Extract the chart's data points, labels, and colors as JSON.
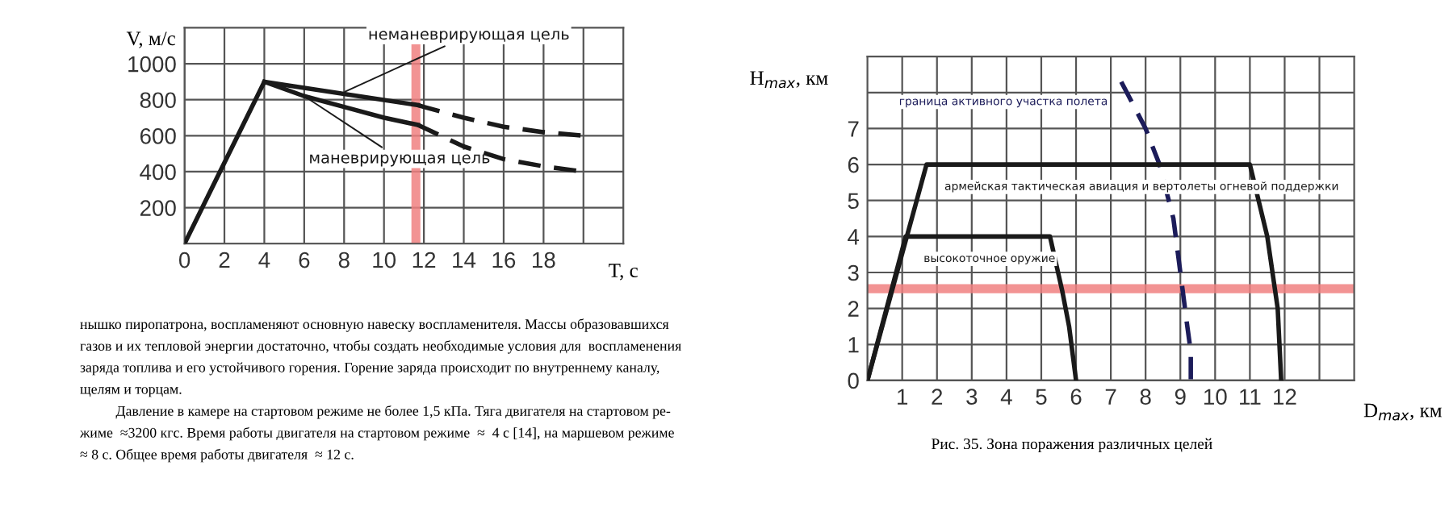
{
  "chart_data": [
    {
      "type": "line",
      "xlabel": "T, с",
      "ylabel": "V, м/с",
      "xlim": [
        0,
        22
      ],
      "ylim": [
        0,
        1200
      ],
      "xticks": [
        0,
        2,
        4,
        6,
        8,
        10,
        12,
        14,
        16,
        18,
        {
          "value": 20,
          "label": null
        }
      ],
      "yticks": [
        {
          "value": 0,
          "label": null
        },
        200,
        400,
        600,
        800,
        1000
      ],
      "grid": true,
      "marker": "none",
      "series": [
        {
          "name": "неманеврирующая цель",
          "color": "#1a1a1a",
          "line_style": "solid",
          "x": [
            0,
            4,
            11.7
          ],
          "values": [
            0,
            900,
            770
          ]
        },
        {
          "color": "#1a1a1a",
          "line_style": "dashed",
          "x": [
            11.7,
            12,
            14,
            16,
            18,
            20
          ],
          "values": [
            770,
            760,
            700,
            650,
            620,
            600
          ]
        },
        {
          "name": "маневрирующая цель",
          "color": "#1a1a1a",
          "line_style": "solid",
          "x": [
            4,
            6,
            8,
            10,
            11.7
          ],
          "values": [
            900,
            820,
            760,
            700,
            660
          ]
        },
        {
          "color": "#1a1a1a",
          "line_style": "dashed",
          "x": [
            11.7,
            14,
            16,
            18,
            20
          ],
          "values": [
            660,
            540,
            470,
            430,
            400
          ]
        }
      ],
      "ref_lines": [
        {
          "axis": "x",
          "value": 11.6,
          "color": "#f08080"
        }
      ]
    },
    {
      "type": "line",
      "xlabel": "D$_{max}$, км",
      "ylabel": "H$_{max}$, км",
      "xlim": [
        0,
        14
      ],
      "ylim": [
        0,
        9
      ],
      "xticks": [
        1,
        2,
        3,
        4,
        5,
        6,
        7,
        8,
        9,
        10,
        11,
        12,
        {
          "value": 13,
          "label": null
        }
      ],
      "yticks": [
        0,
        1,
        2,
        3,
        4,
        5,
        6,
        7,
        {
          "value": 8,
          "label": null
        }
      ],
      "grid": true,
      "marker": "none",
      "series": [
        {
          "name": "граница активного участка полета",
          "color": "#1c1c5a",
          "line_style": "dashed",
          "x": [
            7.3,
            8.0,
            8.4,
            8.8,
            9.0,
            9.2,
            9.3,
            9.3
          ],
          "values": [
            8.3,
            7.0,
            6.0,
            4.5,
            3.0,
            1.5,
            0.8,
            0
          ]
        },
        {
          "name": "армейская тактическая авиация и вертолеты огневой поддержки",
          "color": "#1a1a1a",
          "line_style": "solid",
          "x": [
            0,
            1.7,
            11.0,
            11.5,
            11.8,
            11.9
          ],
          "values": [
            0,
            6,
            6,
            4,
            2,
            0
          ]
        },
        {
          "name": "высокоточное оружие",
          "color": "#1a1a1a",
          "line_style": "solid",
          "x": [
            0,
            1.1,
            5.25,
            5.6,
            5.8,
            6.0
          ],
          "values": [
            0,
            4,
            4,
            2.5,
            1.5,
            0
          ]
        }
      ],
      "ref_lines": [
        {
          "axis": "y",
          "value": 2.55,
          "color": "#f08080"
        }
      ],
      "annotations": [
        "Рис. 35. Зона поражения различных целей"
      ]
    },
    {
      "type": "other",
      "annotations": [
        "нышко пиропатрона, воспламеняют основную навеску воспламенителя. Массы образовавшихся",
        "газов и их тепловой энергии достаточно, чтобы создать необходимые условия для  воспламенения",
        "заряда топлива и его устойчивого горения. Горение заряда происходит по внутреннему каналу,",
        "щелям и торцам.",
        "          Давление в камере на стартовом режиме не более 1,5 кПа. Тяга двигателя на стартовом ре-",
        "жиме  ≈3200 кгс. Время работы двигателя на стартовом режиме  ≈  4 с [14], на маршевом режиме",
        "≈ 8 с. Общее время работы двигателя  ≈ 12 с."
      ]
    }
  ]
}
